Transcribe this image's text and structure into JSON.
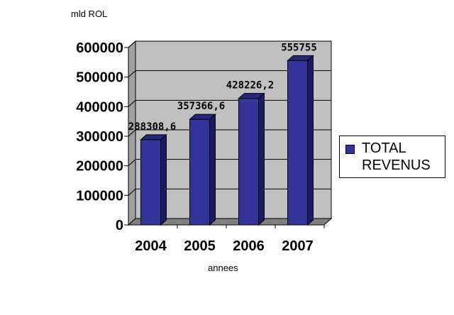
{
  "chart_data": {
    "type": "bar",
    "ylabel": "mld ROL",
    "xlabel": "annees",
    "categories": [
      "2004",
      "2005",
      "2006",
      "2007"
    ],
    "series": [
      {
        "name": "TOTAL REVENUS",
        "values": [
          288308.6,
          357366.6,
          428226.2,
          555755
        ]
      }
    ],
    "data_labels": [
      "288308,6",
      "357366,6",
      "428226,2",
      "555755"
    ],
    "y_ticks": [
      "0",
      "100000",
      "200000",
      "300000",
      "400000",
      "500000",
      "600000"
    ],
    "ylim": [
      0,
      600000
    ],
    "grid": true,
    "legend_position": "right",
    "bar_color": "#333399",
    "wall_color": "#c0c0c0"
  }
}
